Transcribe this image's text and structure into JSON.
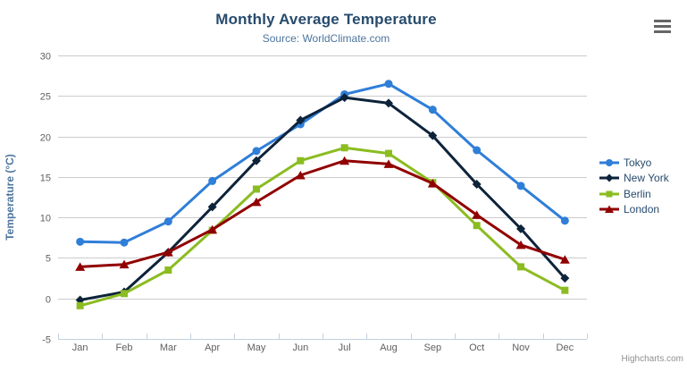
{
  "header": {
    "title": "Monthly Average Temperature",
    "subtitle": "Source: WorldClimate.com",
    "menu_icon": "hamburger-icon"
  },
  "credits": {
    "label": "Highcharts.com"
  },
  "colors": {
    "title_text": "#274b6d",
    "subtitle_text": "#4d759e",
    "axis_label": "#606060",
    "axis_line": "#c0d0e0",
    "gridline": "#cccccc",
    "y_axis_title": "#4d759e",
    "legend_text": "#274b6d",
    "menu_icon": "#666666",
    "credits_text": "#909090"
  },
  "chart_data": {
    "type": "line",
    "title": "Monthly Average Temperature",
    "subtitle": "Source: WorldClimate.com",
    "categories": [
      "Jan",
      "Feb",
      "Mar",
      "Apr",
      "May",
      "Jun",
      "Jul",
      "Aug",
      "Sep",
      "Oct",
      "Nov",
      "Dec"
    ],
    "xlabel": "",
    "ylabel": "Temperature (°C)",
    "ylim": [
      -5,
      30
    ],
    "ytick_step": 5,
    "grid": true,
    "legend_position": "right",
    "series": [
      {
        "name": "Tokyo",
        "color": "#2f7ed8",
        "marker": "circle",
        "values": [
          7.0,
          6.9,
          9.5,
          14.5,
          18.2,
          21.5,
          25.2,
          26.5,
          23.3,
          18.3,
          13.9,
          9.6
        ]
      },
      {
        "name": "New York",
        "color": "#0d233a",
        "marker": "diamond",
        "values": [
          -0.2,
          0.8,
          5.7,
          11.3,
          17.0,
          22.0,
          24.8,
          24.1,
          20.1,
          14.1,
          8.6,
          2.5
        ]
      },
      {
        "name": "Berlin",
        "color": "#8bbc21",
        "marker": "square",
        "values": [
          -0.9,
          0.6,
          3.5,
          8.4,
          13.5,
          17.0,
          18.6,
          17.9,
          14.3,
          9.0,
          3.9,
          1.0
        ]
      },
      {
        "name": "London",
        "color": "#910000",
        "marker": "triangle",
        "values": [
          3.9,
          4.2,
          5.7,
          8.5,
          11.9,
          15.2,
          17.0,
          16.6,
          14.2,
          10.3,
          6.6,
          4.8
        ]
      }
    ]
  }
}
